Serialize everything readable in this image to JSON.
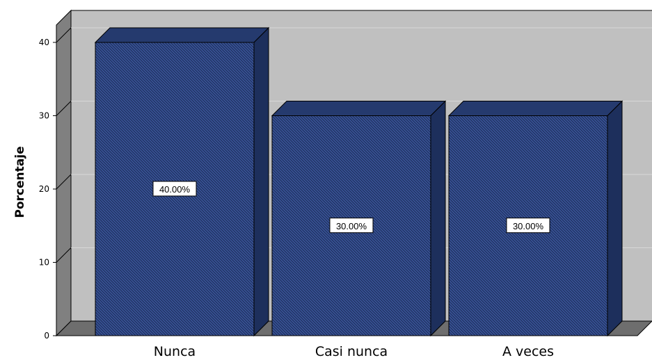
{
  "chart_data": {
    "type": "bar",
    "categories": [
      "Nunca",
      "Casi nunca",
      "A veces"
    ],
    "values": [
      40,
      30,
      30
    ],
    "data_labels": [
      "40.00%",
      "30.00%",
      "30.00%"
    ],
    "xlabel": "",
    "ylabel": "Porcentaje",
    "ylim": [
      0,
      40
    ],
    "yticks": [
      0,
      10,
      20,
      30,
      40
    ],
    "grid": true,
    "legend": "none",
    "style": "3d",
    "colors": {
      "bar_front": "#3a5599",
      "bar_top": "#253a6e",
      "bar_side": "#1d2f5c",
      "back_wall": "#c0c0c0",
      "side_wall": "#808080",
      "floor": "#6e6e6e",
      "gridline": "#d8d8d8"
    }
  }
}
